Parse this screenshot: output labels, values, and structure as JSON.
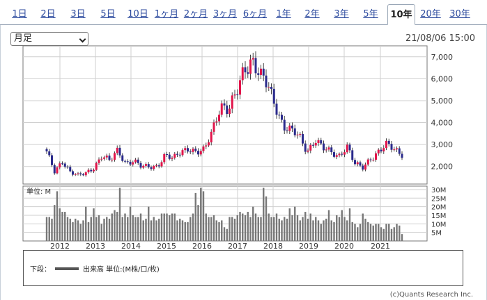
{
  "tabs": [
    {
      "label": "1日"
    },
    {
      "label": "2日"
    },
    {
      "label": "3日"
    },
    {
      "label": "5日"
    },
    {
      "label": "10日"
    },
    {
      "label": "1ヶ月"
    },
    {
      "label": "2ヶ月"
    },
    {
      "label": "3ヶ月"
    },
    {
      "label": "6ヶ月"
    },
    {
      "label": "1年"
    },
    {
      "label": "2年"
    },
    {
      "label": "3年"
    },
    {
      "label": "5年"
    },
    {
      "label": "10年"
    },
    {
      "label": "20年"
    },
    {
      "label": "30年"
    }
  ],
  "active_tab_index": 13,
  "period_select": {
    "value": "月足"
  },
  "timestamp": "21/08/06 15:00",
  "legend": {
    "prefix": "下段：",
    "text": "出来高 単位:(M株/口/枚)"
  },
  "copyright": "(c)Quants Research Inc.",
  "colors": {
    "up": "#e2144a",
    "down": "#2a2a8c",
    "volume": "#777777",
    "grid": "#cfcfcf"
  },
  "chart_data": [
    {
      "type": "candlestick",
      "granularity": "monthly",
      "x_tick_labels": [
        "2012",
        "2013",
        "2014",
        "2015",
        "2016",
        "2017",
        "2018",
        "2019",
        "2020",
        "2021"
      ],
      "y_tick_labels": [
        "2,000",
        "3,000",
        "4,000",
        "5,000",
        "6,000",
        "7,000"
      ],
      "ylim": [
        1200,
        7500
      ],
      "grid": true,
      "price_path": [
        2600,
        1750,
        2300,
        1750,
        1550,
        1700,
        2000,
        2500,
        2200,
        2750,
        2200,
        2250,
        1950,
        2000,
        2050,
        2500,
        2300,
        2700,
        2900,
        2600,
        2700,
        3700,
        4900,
        4500,
        5200,
        6500,
        7000,
        6100,
        5600,
        4800,
        3900,
        3600,
        3300,
        2700,
        3300,
        2800,
        2600,
        2500,
        3000,
        2100,
        1900,
        2400,
        2700,
        2950,
        2750,
        2600
      ]
    },
    {
      "type": "bar",
      "name": "出来高",
      "unit_label": "単位: M",
      "y_tick_labels": [
        "5M",
        "10M",
        "15M",
        "20M",
        "25M",
        "30M"
      ],
      "ylim": [
        0,
        32
      ],
      "values": [
        14,
        14,
        13,
        21,
        29,
        19,
        17,
        17,
        14,
        13,
        11,
        13,
        12,
        10,
        12,
        20,
        11,
        14,
        19,
        14,
        15,
        10,
        13,
        14,
        13,
        16,
        18,
        17,
        31,
        14,
        16,
        14,
        20,
        15,
        14,
        14,
        16,
        12,
        13,
        20,
        12,
        14,
        12,
        13,
        16,
        16,
        16,
        15,
        16,
        16,
        12,
        13,
        12,
        11,
        11,
        14,
        16,
        28,
        21,
        31,
        29,
        16,
        14,
        14,
        15,
        12,
        11,
        12,
        8,
        7,
        14,
        14,
        13,
        15,
        17,
        16,
        15,
        17,
        14,
        20,
        16,
        14,
        14,
        31,
        26,
        16,
        14,
        14,
        16,
        13,
        12,
        14,
        13,
        19,
        15,
        20,
        15,
        12,
        14,
        17,
        13,
        16,
        12,
        14,
        12,
        10,
        12,
        13,
        18,
        12,
        11,
        15,
        14,
        18,
        14,
        12,
        19,
        11,
        10,
        8,
        10,
        16,
        13,
        11,
        10,
        9,
        10,
        10,
        8,
        7,
        10,
        10,
        7,
        8,
        10,
        9,
        4
      ]
    }
  ]
}
